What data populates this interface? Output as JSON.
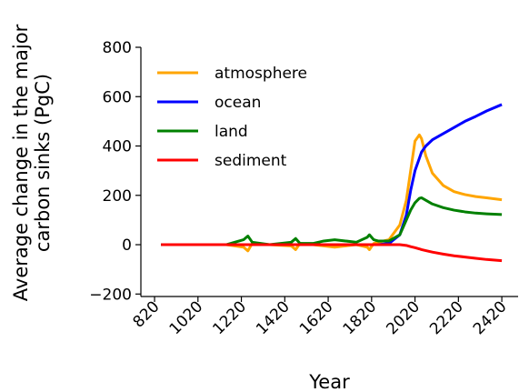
{
  "chart_data": {
    "type": "line",
    "ylabel": [
      "Average change in the major",
      "carbon sinks (PgC)"
    ],
    "xlabel": "Year",
    "x": [
      850,
      950,
      1050,
      1150,
      1230,
      1250,
      1270,
      1350,
      1450,
      1470,
      1490,
      1550,
      1600,
      1650,
      1700,
      1750,
      1800,
      1810,
      1830,
      1850,
      1900,
      1950,
      1980,
      2000,
      2020,
      2040,
      2050,
      2070,
      2100,
      2150,
      2200,
      2250,
      2300,
      2350,
      2420
    ],
    "series": [
      {
        "name": "atmosphere",
        "color": "#ffa500",
        "values": [
          0,
          0,
          0,
          0,
          -10,
          -25,
          5,
          0,
          -5,
          -20,
          5,
          0,
          -5,
          -10,
          -5,
          0,
          -10,
          -20,
          5,
          10,
          20,
          80,
          180,
          300,
          420,
          445,
          430,
          360,
          290,
          240,
          215,
          203,
          195,
          190,
          182
        ]
      },
      {
        "name": "ocean",
        "color": "#0000ff",
        "values": [
          0,
          0,
          0,
          0,
          0,
          0,
          0,
          0,
          0,
          0,
          0,
          0,
          0,
          0,
          0,
          0,
          0,
          0,
          0,
          0,
          5,
          40,
          120,
          220,
          300,
          350,
          375,
          400,
          425,
          450,
          475,
          500,
          520,
          542,
          568
        ]
      },
      {
        "name": "land",
        "color": "#008000",
        "values": [
          0,
          0,
          0,
          0,
          20,
          35,
          10,
          0,
          10,
          25,
          5,
          5,
          15,
          20,
          15,
          10,
          30,
          40,
          20,
          15,
          15,
          40,
          100,
          140,
          170,
          188,
          190,
          180,
          165,
          150,
          140,
          133,
          128,
          125,
          122
        ]
      },
      {
        "name": "sediment",
        "color": "#ff0000",
        "values": [
          0,
          0,
          0,
          0,
          0,
          0,
          0,
          0,
          0,
          0,
          0,
          0,
          0,
          0,
          0,
          0,
          0,
          0,
          0,
          0,
          0,
          0,
          -3,
          -8,
          -12,
          -17,
          -20,
          -24,
          -30,
          -38,
          -45,
          -50,
          -55,
          -60,
          -65
        ]
      }
    ],
    "xlim": [
      757,
      2495
    ],
    "ylim": [
      -210,
      800
    ],
    "xticks": [
      820,
      1020,
      1220,
      1420,
      1620,
      1820,
      2020,
      2220,
      2420
    ],
    "yticks": [
      {
        "value": -200,
        "label": "−200"
      },
      0,
      200,
      400,
      600,
      800
    ],
    "legend": "upper left"
  }
}
